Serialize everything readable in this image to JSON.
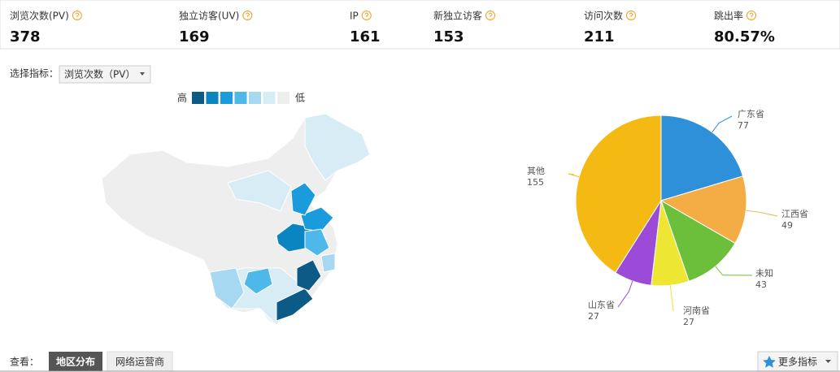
{
  "metrics": [
    {
      "label": "浏览次数(PV)",
      "value": "378"
    },
    {
      "label": "独立访客(UV)",
      "value": "169"
    },
    {
      "label": "IP",
      "value": "161"
    },
    {
      "label": "新独立访客",
      "value": "153"
    },
    {
      "label": "访问次数",
      "value": "211"
    },
    {
      "label": "跳出率",
      "value": "80.57%"
    }
  ],
  "selector": {
    "label": "选择指标：",
    "value": "浏览次数（PV）"
  },
  "legend": {
    "high": "高",
    "low": "低",
    "colors": [
      "#0c5a86",
      "#0a85c2",
      "#1a9bdc",
      "#4fb8ea",
      "#a6d8f2",
      "#d8ecf6",
      "#eeeeee"
    ]
  },
  "pie": {
    "slices": [
      {
        "name": "广东省",
        "value": 77,
        "color": "#2e90d8"
      },
      {
        "name": "江西省",
        "value": 49,
        "color": "#f4ac44"
      },
      {
        "name": "未知",
        "value": 43,
        "color": "#6cbf3a"
      },
      {
        "name": "河南省",
        "value": 27,
        "color": "#ede633"
      },
      {
        "name": "山东省",
        "value": 27,
        "color": "#9b4bd8"
      },
      {
        "name": "其他",
        "value": 155,
        "color": "#f5b914"
      }
    ]
  },
  "footer": {
    "label": "查看：",
    "tabs": [
      "地区分布",
      "网络运营商"
    ],
    "more": "更多指标"
  }
}
